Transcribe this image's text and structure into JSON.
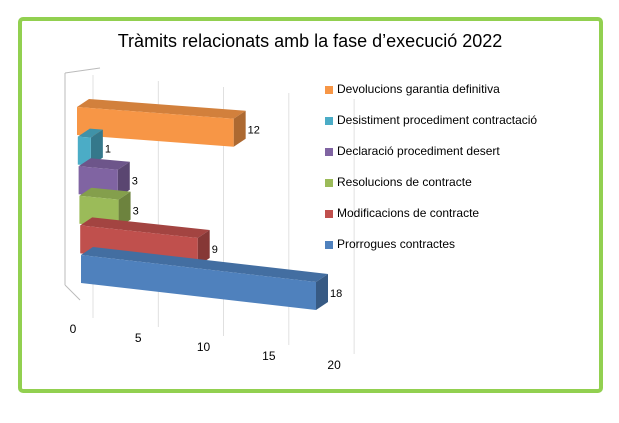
{
  "chart_data": {
    "type": "bar3d",
    "title": "Tràmits relacionats amb la fase d’execució 2022",
    "categories": [
      "Prorrogues contractes",
      "Modificacions de contracte",
      "Resolucions de contracte",
      "Declaració procediment desert",
      "Desistiment procediment contractació",
      "Devolucions garantia definitiva"
    ],
    "values": [
      18,
      9,
      3,
      3,
      1,
      12
    ],
    "colors": [
      "#4f81bd",
      "#c0504d",
      "#9bbb59",
      "#8064a2",
      "#4bacc6",
      "#f79646"
    ],
    "xlim": [
      0,
      20
    ],
    "xticks": [
      0,
      5,
      10,
      15,
      20
    ],
    "grid": true,
    "legend": "right"
  }
}
